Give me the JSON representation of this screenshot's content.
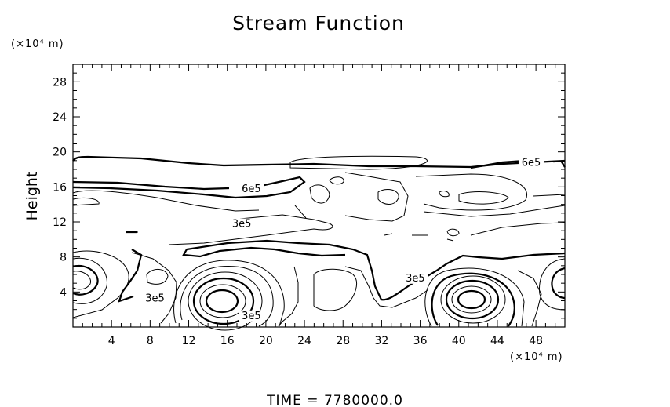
{
  "chart_data": {
    "type": "contour",
    "title": "Stream Function",
    "ylabel": "Height",
    "x_unit": "(×10⁴ m)",
    "y_unit": "(×10⁴ m)",
    "xlim": [
      0,
      51
    ],
    "ylim": [
      0,
      30
    ],
    "x_ticks": [
      4,
      8,
      12,
      16,
      20,
      24,
      28,
      32,
      36,
      40,
      44,
      48
    ],
    "y_ticks": [
      4,
      8,
      12,
      16,
      20,
      24,
      28
    ],
    "contour_labels": [
      {
        "text": "6e5",
        "x": 47.5,
        "y": 18.5
      },
      {
        "text": "6e5",
        "x": 18.5,
        "y": 15.5
      },
      {
        "text": "3e5",
        "x": 17.5,
        "y": 11.5
      },
      {
        "text": "3e5",
        "x": 35.5,
        "y": 5.3
      },
      {
        "text": "3e5",
        "x": 8.5,
        "y": 3.0
      },
      {
        "text": "3e5",
        "x": 18.5,
        "y": 1.0
      }
    ],
    "footer": "TIME  =  7780000.0"
  }
}
